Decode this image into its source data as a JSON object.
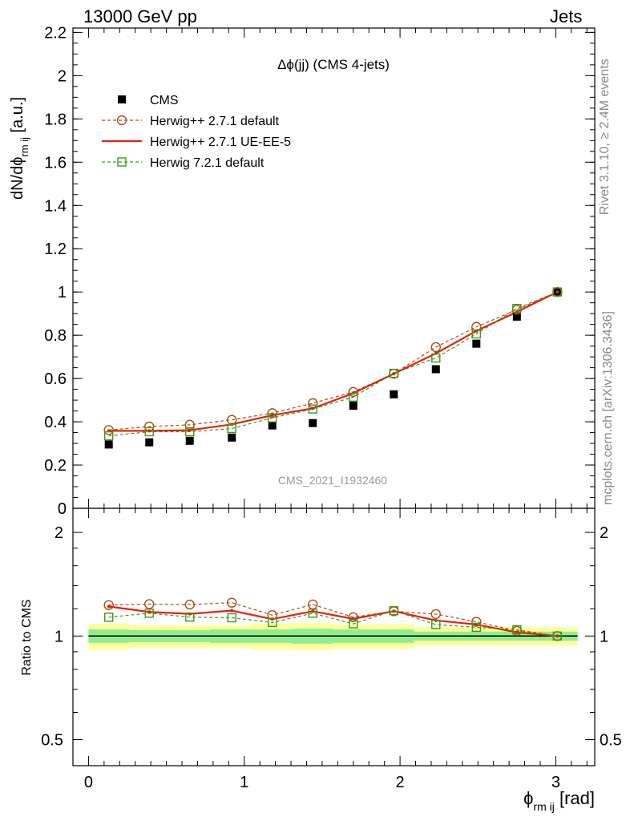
{
  "header": {
    "left": "13000 GeV pp",
    "right": "Jets",
    "side_top": "Rivet 3.1.10, ≥ 2.4M events",
    "side_bottom": "mcplots.cern.ch [arXiv:1306.3436]"
  },
  "chart_data": [
    {
      "type": "scatter",
      "title": "Δϕ(jj) (CMS 4-jets)",
      "watermark": "CMS_2021_I1932460",
      "xlabel": "ϕ",
      "xlabel_sub": "rm ij",
      "xlabel_unit": "[rad]",
      "ylabel": "dN/dϕ",
      "ylabel_sub": "rm ij",
      "ylabel_unit": "[a.u.]",
      "xlim": [
        -0.1,
        3.25
      ],
      "ylim": [
        0,
        2.22
      ],
      "yticks": [
        "0",
        "0.2",
        "0.4",
        "0.6",
        "0.8",
        "1",
        "1.2",
        "1.4",
        "1.6",
        "1.8",
        "2",
        "2.2"
      ],
      "xticks": [
        "0",
        "1",
        "2",
        "3"
      ],
      "legend_position": "top-left",
      "x": [
        0.13,
        0.39,
        0.65,
        0.92,
        1.18,
        1.44,
        1.7,
        1.96,
        2.23,
        2.49,
        2.75,
        3.01
      ],
      "series": [
        {
          "name": "CMS",
          "color": "#000000",
          "marker": "filled-square",
          "values": [
            0.295,
            0.305,
            0.312,
            0.327,
            0.383,
            0.394,
            0.474,
            0.527,
            0.643,
            0.761,
            0.886,
            1.0
          ]
        },
        {
          "name": "Herwig++ 2.7.1 default",
          "color": "#a0521d",
          "marker": "open-circle",
          "line": "dashed",
          "values": [
            0.362,
            0.378,
            0.386,
            0.409,
            0.44,
            0.486,
            0.538,
            0.622,
            0.745,
            0.839,
            0.918,
            1.0
          ]
        },
        {
          "name": "Herwig++ 2.7.1 UE-EE-5",
          "color": "#ee1c0a",
          "marker": "none",
          "line": "solid",
          "values": [
            0.358,
            0.358,
            0.361,
            0.388,
            0.43,
            0.462,
            0.532,
            0.622,
            0.716,
            0.82,
            0.908,
            1.0
          ]
        },
        {
          "name": "Herwig 7.2.1 default",
          "color": "#3a9a1a",
          "marker": "open-square",
          "line": "dashed",
          "values": [
            0.335,
            0.354,
            0.354,
            0.369,
            0.418,
            0.459,
            0.514,
            0.624,
            0.695,
            0.806,
            0.924,
            1.0
          ]
        }
      ]
    },
    {
      "type": "line",
      "ylabel": "Ratio to CMS",
      "scale": "log",
      "ylim": [
        0.42,
        2.35
      ],
      "yticks": [
        "0.5",
        "1",
        "2"
      ],
      "xticks": [
        "0",
        "1",
        "2",
        "3"
      ],
      "x": [
        0.13,
        0.39,
        0.65,
        0.92,
        1.18,
        1.44,
        1.7,
        1.96,
        2.23,
        2.49,
        2.75,
        3.01
      ],
      "band_edges": [
        0.0,
        0.26,
        0.52,
        0.78,
        1.05,
        1.31,
        1.57,
        1.83,
        2.09,
        2.36,
        2.62,
        2.88,
        3.14
      ],
      "band_inner": [
        0.045,
        0.04,
        0.04,
        0.045,
        0.045,
        0.05,
        0.045,
        0.045,
        0.03,
        0.03,
        0.03,
        0.03
      ],
      "band_outer": [
        0.085,
        0.075,
        0.075,
        0.075,
        0.085,
        0.09,
        0.08,
        0.08,
        0.06,
        0.06,
        0.06,
        0.06
      ],
      "band_colors": {
        "inner": "#90ee90",
        "outer": "#ffff99"
      },
      "series": [
        {
          "name": "Herwig++ 2.7.1 default",
          "color": "#a0521d",
          "values": [
            1.23,
            1.238,
            1.234,
            1.25,
            1.15,
            1.235,
            1.134,
            1.18,
            1.158,
            1.1,
            1.035,
            1.0
          ]
        },
        {
          "name": "Herwig++ 2.7.1 UE-EE-5",
          "color": "#ee1c0a",
          "values": [
            1.218,
            1.175,
            1.16,
            1.185,
            1.12,
            1.18,
            1.122,
            1.181,
            1.11,
            1.08,
            1.025,
            1.0
          ]
        },
        {
          "name": "Herwig 7.2.1 default",
          "color": "#3a9a1a",
          "values": [
            1.134,
            1.165,
            1.135,
            1.13,
            1.095,
            1.165,
            1.085,
            1.185,
            1.08,
            1.06,
            1.043,
            1.0
          ]
        }
      ]
    }
  ]
}
